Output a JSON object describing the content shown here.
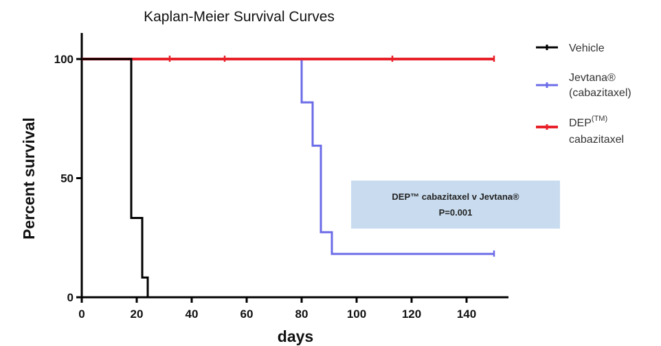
{
  "chart_data": {
    "type": "line",
    "step": true,
    "title": "Kaplan-Meier Survival Curves",
    "xlabel": "days",
    "ylabel": "Percent survival",
    "xlim": [
      0,
      155
    ],
    "ylim": [
      0,
      110
    ],
    "xticks": [
      0,
      20,
      40,
      60,
      80,
      100,
      120,
      140
    ],
    "yticks": [
      0,
      50,
      100
    ],
    "grid": false,
    "legend_position": "right",
    "series": [
      {
        "name": "Vehicle",
        "color": "#000000",
        "x": [
          0,
          18,
          22,
          24
        ],
        "y": [
          100,
          33.3,
          8.3,
          0
        ],
        "censor_x": []
      },
      {
        "name": "Jevtana® (cabazitaxel)",
        "color": "#6b6be8",
        "x": [
          0,
          80,
          84,
          87,
          91,
          150
        ],
        "y": [
          100,
          81.8,
          63.6,
          27.3,
          18.2,
          18.2
        ],
        "censor_x": [
          150
        ]
      },
      {
        "name": "DEP(TM) cabazitaxel",
        "color": "#e8202a",
        "x": [
          0,
          150
        ],
        "y": [
          100,
          100
        ],
        "censor_x": [
          32,
          52,
          113,
          150
        ]
      }
    ],
    "legend": [
      {
        "line1": "Vehicle",
        "line2": "",
        "sup": ""
      },
      {
        "line1": "Jevtana®",
        "line2": "(cabazitaxel)",
        "sup": ""
      },
      {
        "line1": "DEP",
        "line2": "cabazitaxel",
        "sup": "(TM)"
      }
    ],
    "annotation": {
      "line1": "DEP™ cabazitaxel v Jevtana®",
      "line2": "P=0.001",
      "background": "#c9dcef"
    }
  }
}
